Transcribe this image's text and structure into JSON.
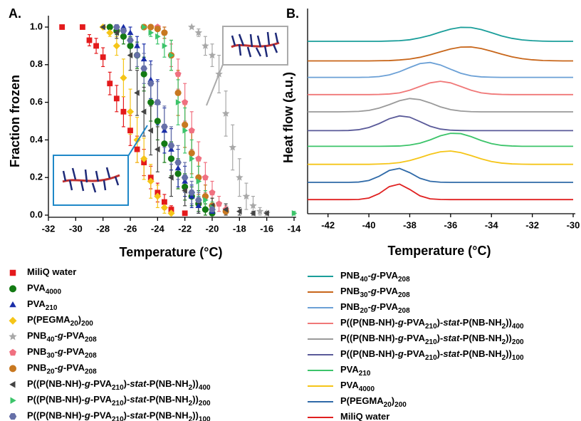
{
  "chart_data": [
    {
      "type": "scatter",
      "panel_label": "A.",
      "xlabel": "Temperature (°C)",
      "ylabel": "Fraction frozen",
      "xlim": [
        -32,
        -14
      ],
      "xticks": [
        -32,
        -30,
        -28,
        -26,
        -24,
        -22,
        -20,
        -18,
        -16,
        -14
      ],
      "ylim": [
        0,
        1
      ],
      "yticks": [
        {
          "value": 0,
          "label": "0.0"
        },
        0.2,
        0.4,
        0.6,
        0.8,
        {
          "value": 1,
          "label": "1.0"
        }
      ],
      "series": [
        {
          "name": "MiliQ water",
          "color": "#e41a1c",
          "marker": "square",
          "x": [
            -31,
            -29.5,
            -29,
            -28.5,
            -28,
            -27.5,
            -27,
            -26.5,
            -26,
            -25.5,
            -25,
            -24.5,
            -24,
            -23.5,
            -23,
            -22
          ],
          "values": [
            1.0,
            1.0,
            0.93,
            0.9,
            0.84,
            0.7,
            0.62,
            0.55,
            0.45,
            0.35,
            0.28,
            0.2,
            0.12,
            0.07,
            0.03,
            0.01
          ],
          "errors": [
            0,
            0,
            0.03,
            0.04,
            0.05,
            0.06,
            0.07,
            0.08,
            0.08,
            0.07,
            0.07,
            0.06,
            0.05,
            0.04,
            0.02,
            0.01
          ]
        },
        {
          "name": "PVA4000",
          "color": "#137a13",
          "marker": "circle",
          "x": [
            -27.5,
            -27,
            -26.5,
            -26,
            -25.5,
            -25,
            -24.5,
            -24,
            -23.5,
            -23,
            -22.5,
            -22,
            -21.5,
            -21,
            -20.5,
            -20
          ],
          "values": [
            1.0,
            0.98,
            0.95,
            0.9,
            0.85,
            0.75,
            0.6,
            0.5,
            0.38,
            0.3,
            0.22,
            0.15,
            0.1,
            0.06,
            0.03,
            0.01
          ],
          "errors": [
            0,
            0.02,
            0.04,
            0.05,
            0.07,
            0.09,
            0.1,
            0.1,
            0.1,
            0.09,
            0.08,
            0.07,
            0.05,
            0.04,
            0.03,
            0.01
          ]
        },
        {
          "name": "PVA210",
          "color": "#1a2ea8",
          "marker": "triangle-up",
          "x": [
            -26.5,
            -26,
            -25.5,
            -25,
            -24.5,
            -24,
            -23.5,
            -23,
            -22.5,
            -22,
            -21.5,
            -21,
            -20
          ],
          "values": [
            1.0,
            0.97,
            0.9,
            0.83,
            0.72,
            0.6,
            0.45,
            0.35,
            0.25,
            0.18,
            0.1,
            0.05,
            0.02
          ],
          "errors": [
            0,
            0.03,
            0.05,
            0.08,
            0.1,
            0.12,
            0.12,
            0.11,
            0.1,
            0.08,
            0.06,
            0.04,
            0.02
          ]
        },
        {
          "name": "P(PEGMA20)200",
          "color": "#f5c518",
          "marker": "diamond",
          "x": [
            -28,
            -27.5,
            -27,
            -26.5,
            -26,
            -25.5,
            -25,
            -24.5,
            -24,
            -23.5,
            -23
          ],
          "values": [
            1.0,
            0.97,
            0.9,
            0.73,
            0.55,
            0.4,
            0.3,
            0.18,
            0.1,
            0.04,
            0.01
          ],
          "errors": [
            0,
            0.02,
            0.05,
            0.1,
            0.12,
            0.12,
            0.11,
            0.09,
            0.06,
            0.03,
            0.01
          ]
        },
        {
          "name": "PNB40-g-PVA208",
          "color": "#a8a8a8",
          "marker": "star",
          "x": [
            -21.5,
            -21,
            -20.5,
            -20,
            -19.5,
            -19,
            -18.5,
            -18,
            -17.5,
            -17,
            -16.5,
            -16
          ],
          "values": [
            1.0,
            0.97,
            0.9,
            0.85,
            0.75,
            0.54,
            0.36,
            0.2,
            0.1,
            0.05,
            0.02,
            0.01
          ],
          "errors": [
            0,
            0.02,
            0.05,
            0.06,
            0.1,
            0.12,
            0.12,
            0.1,
            0.07,
            0.05,
            0.02,
            0.01
          ]
        },
        {
          "name": "PNB30-g-PVA208",
          "color": "#f07080",
          "marker": "pentagon",
          "x": [
            -24,
            -23.5,
            -23,
            -22.5,
            -22,
            -21.5,
            -21,
            -20.5,
            -20,
            -19.5,
            -19
          ],
          "values": [
            1.0,
            0.97,
            0.85,
            0.75,
            0.6,
            0.45,
            0.3,
            0.2,
            0.12,
            0.06,
            0.03
          ],
          "errors": [
            0,
            0.03,
            0.06,
            0.08,
            0.1,
            0.1,
            0.09,
            0.08,
            0.06,
            0.04,
            0.02
          ]
        },
        {
          "name": "PNB20-g-PVA208",
          "color": "#c87820",
          "marker": "circle",
          "x": [
            -25,
            -24.5,
            -24,
            -23.5,
            -23,
            -22.5,
            -22,
            -21.5,
            -21,
            -20.5,
            -20,
            -19
          ],
          "values": [
            1.0,
            1.0,
            0.99,
            0.97,
            0.85,
            0.65,
            0.48,
            0.33,
            0.2,
            0.1,
            0.05,
            0.02
          ],
          "errors": [
            0,
            0,
            0.01,
            0.03,
            0.08,
            0.12,
            0.12,
            0.11,
            0.09,
            0.06,
            0.04,
            0.02
          ]
        },
        {
          "name": "P((P(NB-NH)-g-PVA210)-stat-P(NB-NH2))400",
          "color": "#444444",
          "marker": "triangle-left",
          "x": [
            -28,
            -27,
            -26,
            -25.5,
            -25,
            -24.5,
            -24,
            -23,
            -22,
            -21,
            -20,
            -19,
            -18,
            -17,
            -16
          ],
          "values": [
            1.0,
            0.97,
            0.85,
            0.65,
            0.55,
            0.45,
            0.35,
            0.2,
            0.13,
            0.07,
            0.05,
            0.03,
            0.02,
            0.01,
            0.01
          ],
          "errors": [
            0,
            0.03,
            0.08,
            0.12,
            0.13,
            0.13,
            0.12,
            0.1,
            0.08,
            0.06,
            0.04,
            0.03,
            0.02,
            0.01,
            0.01
          ]
        },
        {
          "name": "P((P(NB-NH)-g-PVA210)-stat-P(NB-NH2))200",
          "color": "#3cc46a",
          "marker": "triangle-right",
          "x": [
            -25,
            -24.5,
            -24,
            -23.5,
            -23,
            -22.5,
            -22,
            -21.5,
            -21,
            -20.5,
            -20,
            -14
          ],
          "values": [
            1.0,
            0.97,
            0.95,
            0.9,
            0.85,
            0.6,
            0.45,
            0.3,
            0.18,
            0.08,
            0.04,
            0.01
          ],
          "errors": [
            0,
            0.02,
            0.04,
            0.06,
            0.08,
            0.12,
            0.12,
            0.1,
            0.08,
            0.05,
            0.03,
            0.01
          ]
        },
        {
          "name": "P((P(NB-NH)-g-PVA210)-stat-P(NB-NH2))100",
          "color": "#6670a8",
          "marker": "hexagon",
          "x": [
            -27,
            -26.5,
            -26,
            -25.5,
            -25,
            -24.5,
            -24,
            -23.5,
            -23,
            -22.5,
            -22,
            -21.5,
            -21,
            -20
          ],
          "values": [
            1.0,
            0.98,
            0.93,
            0.85,
            0.78,
            0.7,
            0.6,
            0.47,
            0.37,
            0.28,
            0.2,
            0.12,
            0.08,
            0.03
          ],
          "errors": [
            0,
            0.02,
            0.04,
            0.06,
            0.08,
            0.1,
            0.11,
            0.11,
            0.1,
            0.09,
            0.08,
            0.06,
            0.04,
            0.02
          ]
        }
      ]
    },
    {
      "type": "line",
      "panel_label": "B.",
      "xlabel": "Temperature (°C)",
      "ylabel": "Heat flow (a.u.)",
      "xlim": [
        -43,
        -30
      ],
      "xticks": [
        -42,
        -40,
        -38,
        -36,
        -34,
        -32,
        -30
      ],
      "ylim": [
        0,
        12.5
      ],
      "x": [
        -43,
        -42.5,
        -42,
        -41.5,
        -41,
        -40.5,
        -40,
        -39.5,
        -39,
        -38.5,
        -38,
        -37.5,
        -37,
        -36.5,
        -36,
        -35.5,
        -35,
        -34.5,
        -34,
        -33.5,
        -33,
        -32.5,
        -32,
        -31.5,
        -31,
        -30.5,
        -30
      ],
      "series": [
        {
          "name": "PNB40-g-PVA208",
          "color": "#1a9e9a",
          "values": [
            11.0,
            11.0,
            11.0,
            11.0,
            11.0,
            11.0,
            11.0,
            11.0,
            11.02,
            11.04,
            11.1,
            11.22,
            11.38,
            11.59,
            11.78,
            11.89,
            11.88,
            11.75,
            11.55,
            11.34,
            11.19,
            11.09,
            11.04,
            11.01,
            11.0,
            11.0,
            11.0
          ]
        },
        {
          "name": "PNB30-g-PVA208",
          "color": "#c8661a",
          "values": [
            9.75,
            9.75,
            9.75,
            9.75,
            9.75,
            9.75,
            9.75,
            9.76,
            9.77,
            9.81,
            9.87,
            9.98,
            10.14,
            10.33,
            10.51,
            10.63,
            10.64,
            10.54,
            10.37,
            10.18,
            10.01,
            9.89,
            9.82,
            9.78,
            9.76,
            9.75,
            9.75
          ]
        },
        {
          "name": "PNB20-g-PVA208",
          "color": "#6ba0d6",
          "values": [
            8.7,
            8.7,
            8.7,
            8.7,
            8.7,
            8.7,
            8.71,
            8.75,
            8.86,
            9.06,
            9.33,
            9.58,
            9.65,
            9.49,
            9.22,
            8.96,
            8.8,
            8.73,
            8.71,
            8.7,
            8.7,
            8.7,
            8.7,
            8.7,
            8.7,
            8.7,
            8.7
          ]
        },
        {
          "name": "P((P(NB-NH)-g-PVA210)-stat-P(NB-NH2))400",
          "color": "#f07878",
          "values": [
            7.6,
            7.6,
            7.6,
            7.6,
            7.6,
            7.6,
            7.6,
            7.61,
            7.64,
            7.71,
            7.88,
            8.12,
            8.35,
            8.45,
            8.35,
            8.12,
            7.88,
            7.71,
            7.64,
            7.61,
            7.6,
            7.6,
            7.6,
            7.6,
            7.6,
            7.6,
            7.6
          ]
        },
        {
          "name": "P((P(NB-NH)-g-PVA210)-stat-P(NB-NH2))200",
          "color": "#9a9a9a",
          "values": [
            6.5,
            6.5,
            6.5,
            6.5,
            6.51,
            6.53,
            6.59,
            6.74,
            6.96,
            7.21,
            7.35,
            7.28,
            7.07,
            6.82,
            6.64,
            6.55,
            6.51,
            6.5,
            6.5,
            6.5,
            6.5,
            6.5,
            6.5,
            6.5,
            6.5,
            6.5,
            6.5
          ]
        },
        {
          "name": "P((P(NB-NH)-g-PVA210)-stat-P(NB-NH2))100",
          "color": "#5a5a99",
          "values": [
            5.3,
            5.3,
            5.3,
            5.3,
            5.31,
            5.36,
            5.5,
            5.75,
            6.06,
            6.24,
            6.16,
            5.88,
            5.58,
            5.4,
            5.33,
            5.31,
            5.3,
            5.3,
            5.3,
            5.3,
            5.3,
            5.3,
            5.3,
            5.3,
            5.3,
            5.3,
            5.3
          ]
        },
        {
          "name": "PVA210",
          "color": "#3cc46a",
          "values": [
            4.3,
            4.3,
            4.3,
            4.3,
            4.3,
            4.3,
            4.3,
            4.3,
            4.31,
            4.32,
            4.38,
            4.5,
            4.71,
            4.97,
            5.13,
            5.11,
            4.92,
            4.67,
            4.47,
            4.36,
            4.32,
            4.3,
            4.3,
            4.3,
            4.3,
            4.3,
            4.3
          ]
        },
        {
          "name": "PVA4000",
          "color": "#f5c518",
          "values": [
            3.15,
            3.15,
            3.15,
            3.15,
            3.15,
            3.15,
            3.15,
            3.17,
            3.2,
            3.26,
            3.39,
            3.58,
            3.79,
            3.95,
            4.0,
            3.9,
            3.71,
            3.5,
            3.33,
            3.23,
            3.18,
            3.16,
            3.15,
            3.15,
            3.15,
            3.15,
            3.15
          ]
        },
        {
          "name": "P(PEGMA20)200",
          "color": "#2f6aa8",
          "values": [
            2.0,
            2.0,
            2.0,
            2.0,
            2.0,
            2.02,
            2.12,
            2.39,
            2.76,
            2.89,
            2.62,
            2.26,
            2.07,
            2.01,
            2.0,
            2.0,
            2.0,
            2.0,
            2.0,
            2.0,
            2.0,
            2.0,
            2.0,
            2.0,
            2.0,
            2.0,
            2.0
          ]
        },
        {
          "name": "MiliQ water",
          "color": "#e02020",
          "values": [
            0.9,
            0.9,
            0.9,
            0.9,
            0.9,
            0.91,
            1.0,
            1.28,
            1.73,
            1.89,
            1.55,
            1.14,
            0.95,
            0.91,
            0.9,
            0.9,
            0.9,
            0.9,
            0.9,
            0.9,
            0.9,
            0.9,
            0.9,
            0.9,
            0.9,
            0.9,
            0.9
          ]
        }
      ]
    }
  ]
}
